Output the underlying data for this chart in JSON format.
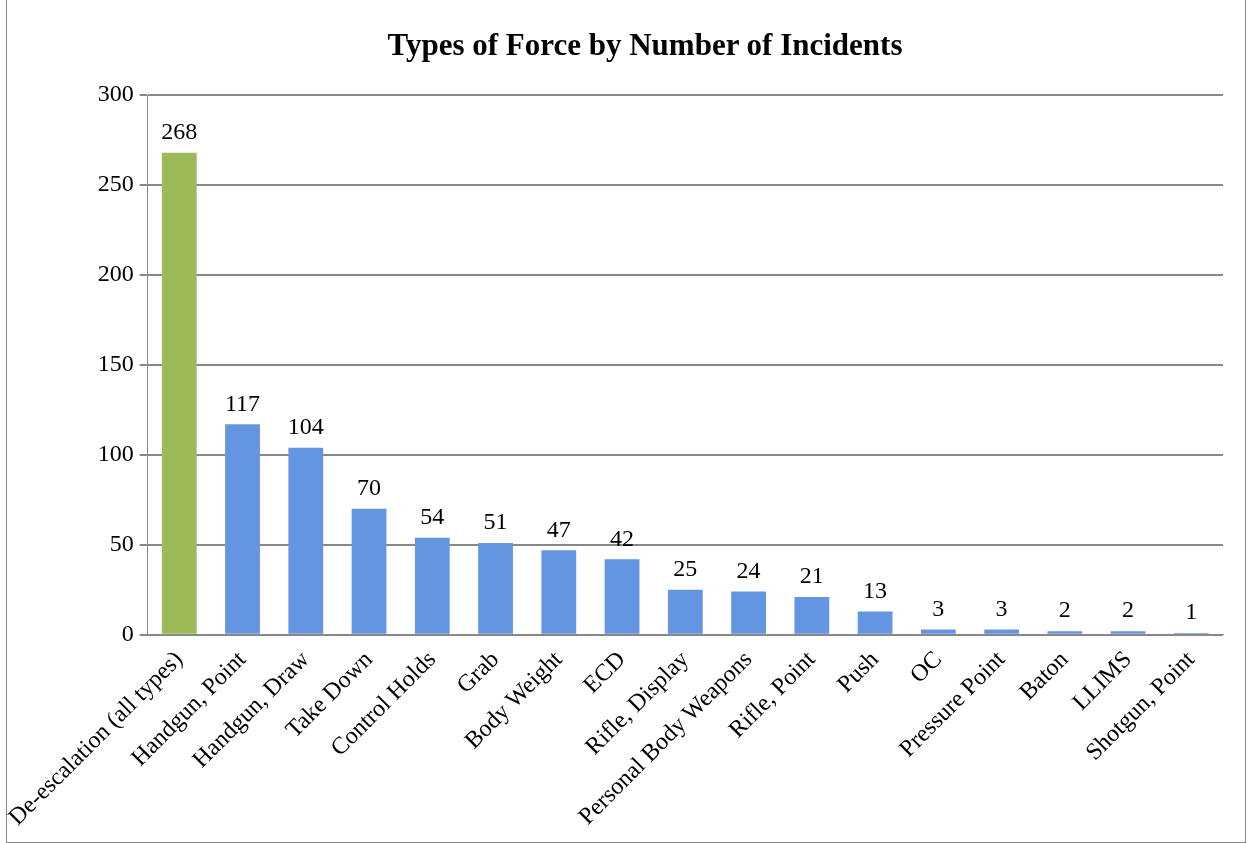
{
  "chart_data": {
    "type": "bar",
    "title": "Types of Force by Number of Incidents",
    "categories": [
      "De-escalation (all types)",
      "Handgun, Point",
      "Handgun, Draw",
      "Take Down",
      "Control Holds",
      "Grab",
      "Body Weight",
      "ECD",
      "Rifle, Display",
      "Personal Body Weapons",
      "Rifle, Point",
      "Push",
      "OC",
      "Pressure Point",
      "Baton",
      "LLIMS",
      "Shotgun, Point"
    ],
    "values": [
      268,
      117,
      104,
      70,
      54,
      51,
      47,
      42,
      25,
      24,
      21,
      13,
      3,
      3,
      2,
      2,
      1
    ],
    "colors": [
      "#9bbb59",
      "#6495e0",
      "#6495e0",
      "#6495e0",
      "#6495e0",
      "#6495e0",
      "#6495e0",
      "#6495e0",
      "#6495e0",
      "#6495e0",
      "#6495e0",
      "#6495e0",
      "#6495e0",
      "#6495e0",
      "#6495e0",
      "#6495e0",
      "#6495e0"
    ],
    "ylim": [
      0,
      300
    ],
    "yticks": [
      0,
      50,
      100,
      150,
      200,
      250,
      300
    ],
    "grid": "y",
    "data_labels": true
  }
}
